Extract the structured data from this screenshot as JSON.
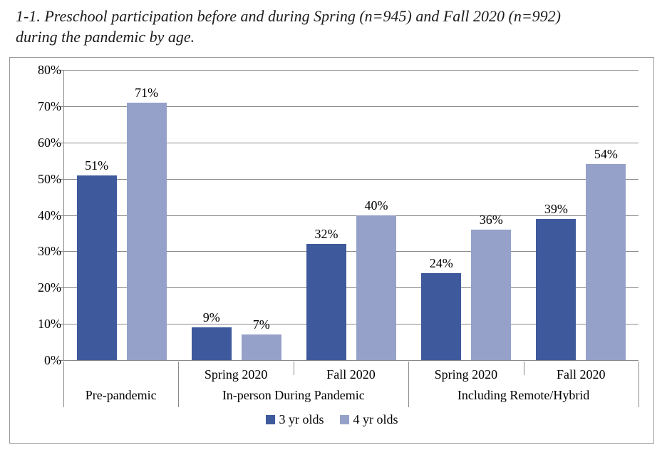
{
  "title": {
    "line1": "1-1. Preschool participation before and during Spring (n=945) and Fall 2020 (n=992)",
    "line2": "during the pandemic by age."
  },
  "chart_data": {
    "type": "bar",
    "title": "1-1. Preschool participation before and during Spring (n=945) and Fall 2020 (n=992) during the pandemic by age.",
    "ylim": [
      0,
      80
    ],
    "ytick_step": 10,
    "ytick_labels": [
      "0%",
      "10%",
      "20%",
      "30%",
      "40%",
      "50%",
      "60%",
      "70%",
      "80%"
    ],
    "grid": true,
    "legend_position": "bottom",
    "categories": [
      "Pre-pandemic",
      "In-person During Pandemic | Spring 2020",
      "In-person During Pandemic | Fall 2020",
      "Including Remote/Hybrid | Spring 2020",
      "Including Remote/Hybrid | Fall 2020"
    ],
    "sub_labels": [
      "",
      "Spring 2020",
      "Fall 2020",
      "Spring 2020",
      "Fall 2020"
    ],
    "groups": [
      {
        "label": "Pre-pandemic",
        "span": 1
      },
      {
        "label": "In-person During Pandemic",
        "span": 2
      },
      {
        "label": "Including Remote/Hybrid",
        "span": 2
      }
    ],
    "series": [
      {
        "name": "3 yr olds",
        "color": "#3F5A9C",
        "values": [
          51,
          9,
          32,
          24,
          39
        ],
        "data_labels": [
          "51%",
          "9%",
          "32%",
          "24%",
          "39%"
        ]
      },
      {
        "name": "4 yr olds",
        "color": "#95A1C9",
        "values": [
          71,
          7,
          40,
          36,
          54
        ],
        "data_labels": [
          "71%",
          "7%",
          "40%",
          "36%",
          "54%"
        ]
      }
    ],
    "colors": {
      "gridline": "#8A8A8A",
      "axis": "#8A8A8A",
      "chart_border": "#9A9A9A",
      "text": "#000000"
    }
  },
  "legend": {
    "items": [
      {
        "label": "3 yr olds",
        "color": "#3F5A9C"
      },
      {
        "label": "4 yr olds",
        "color": "#95A1C9"
      }
    ]
  }
}
